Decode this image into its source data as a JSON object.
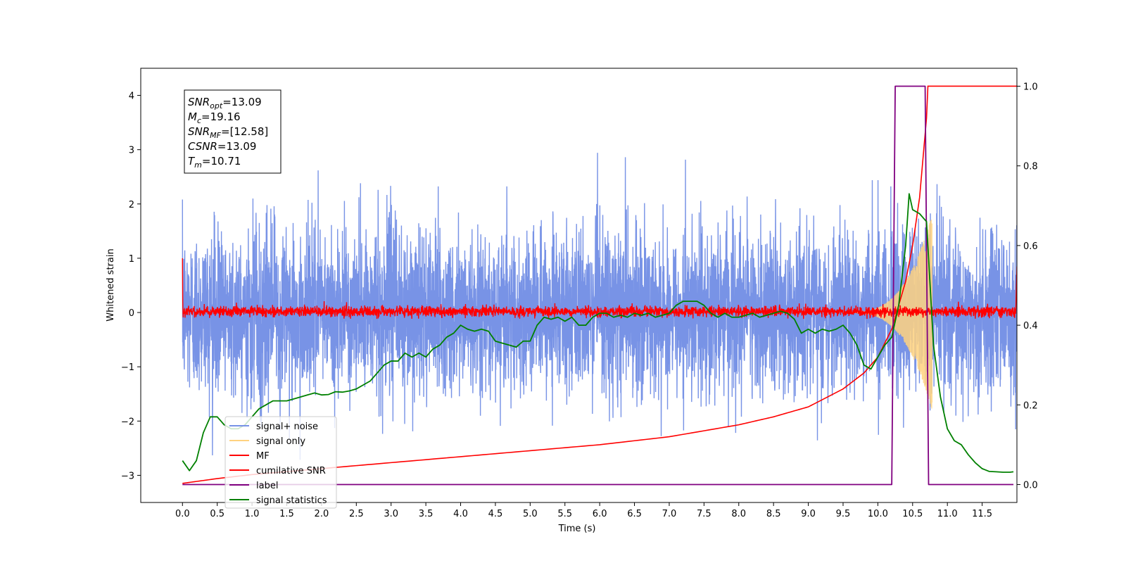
{
  "chart_data": {
    "type": "line",
    "xlabel": "Time (s)",
    "ylabel": "Whitened strain",
    "xlim": [
      -0.6,
      12.0
    ],
    "ylim": [
      -3.5,
      4.5
    ],
    "y2lim": [
      -0.045,
      1.045
    ],
    "grid": false,
    "legend_placement": "lower-left",
    "x_ticks": [
      0.0,
      0.5,
      1.0,
      1.5,
      2.0,
      2.5,
      3.0,
      3.5,
      4.0,
      4.5,
      5.0,
      5.5,
      6.0,
      6.5,
      7.0,
      7.5,
      8.0,
      8.5,
      9.0,
      9.5,
      10.0,
      10.5,
      11.0,
      11.5
    ],
    "x_tick_labels": [
      "0.0",
      "0.5",
      "1.0",
      "1.5",
      "2.0",
      "2.5",
      "3.0",
      "3.5",
      "4.0",
      "4.5",
      "5.0",
      "5.5",
      "6.0",
      "6.5",
      "7.0",
      "7.5",
      "8.0",
      "8.5",
      "9.0",
      "9.5",
      "10.0",
      "10.5",
      "11.0",
      "11.5"
    ],
    "y_ticks": [
      -3,
      -2,
      -1,
      0,
      1,
      2,
      3,
      4
    ],
    "y_tick_labels": [
      "−3",
      "−2",
      "−1",
      "0",
      "1",
      "2",
      "3",
      "4"
    ],
    "y2_ticks": [
      0.0,
      0.2,
      0.4,
      0.6,
      0.8,
      1.0
    ],
    "y2_tick_labels": [
      "0.0",
      "0.2",
      "0.4",
      "0.6",
      "0.8",
      "1.0"
    ],
    "annotation": [
      {
        "base": "SNR",
        "sub": "opt",
        "value": "=13.09"
      },
      {
        "base": "M",
        "sub": "c",
        "value": "=19.16"
      },
      {
        "base": "SNR",
        "sub": "MF",
        "value": "=[12.58]"
      },
      {
        "base": "CSNR",
        "sub": "",
        "value": "=13.09"
      },
      {
        "base": "T",
        "sub": "m",
        "value": "=10.71"
      }
    ],
    "series": [
      {
        "name": "signal+ noise",
        "color": "#7893e6",
        "axis": "left",
        "x_range": [
          0.0,
          12.0
        ],
        "noise_sigma": 0.75,
        "peak_range": [
          -2.9,
          3.3
        ]
      },
      {
        "name": "signal only",
        "color": "#ffd27f",
        "axis": "left",
        "x_range": [
          9.5,
          10.78
        ],
        "peak_amplitude": 1.8
      },
      {
        "name": "MF",
        "color": "#ff0000",
        "axis": "left",
        "x_range": [
          0.0,
          12.0
        ],
        "start_value": 1.0,
        "band": [
          -0.1,
          0.15
        ],
        "end_value": 0.85
      },
      {
        "name": "cumilative SNR",
        "color": "#ff0000",
        "axis": "right",
        "x": [
          0.0,
          0.5,
          1.0,
          2.0,
          3.0,
          4.0,
          5.0,
          6.0,
          7.0,
          8.0,
          8.5,
          9.0,
          9.5,
          9.8,
          10.0,
          10.2,
          10.4,
          10.5,
          10.6,
          10.7,
          10.72,
          12.0
        ],
        "y": [
          0.003,
          0.015,
          0.025,
          0.04,
          0.055,
          0.07,
          0.085,
          0.1,
          0.12,
          0.15,
          0.17,
          0.195,
          0.24,
          0.28,
          0.32,
          0.39,
          0.51,
          0.6,
          0.72,
          0.92,
          1.0,
          1.0
        ]
      },
      {
        "name": "label",
        "color": "#800080",
        "axis": "right",
        "x": [
          0.0,
          10.2,
          10.25,
          10.68,
          10.73,
          11.95
        ],
        "y": [
          0.0,
          0.0,
          1.0,
          1.0,
          0.0,
          0.0
        ]
      },
      {
        "name": "signal statistics",
        "color": "#008000",
        "axis": "right",
        "x": [
          0.0,
          0.1,
          0.2,
          0.3,
          0.4,
          0.5,
          0.6,
          0.7,
          0.8,
          0.9,
          1.0,
          1.1,
          1.2,
          1.3,
          1.4,
          1.5,
          1.6,
          1.7,
          1.8,
          1.9,
          2.0,
          2.1,
          2.2,
          2.3,
          2.4,
          2.5,
          2.6,
          2.7,
          2.8,
          2.9,
          3.0,
          3.1,
          3.2,
          3.3,
          3.4,
          3.5,
          3.6,
          3.7,
          3.8,
          3.9,
          4.0,
          4.1,
          4.2,
          4.3,
          4.4,
          4.5,
          4.6,
          4.7,
          4.8,
          4.9,
          5.0,
          5.1,
          5.2,
          5.3,
          5.4,
          5.5,
          5.6,
          5.7,
          5.8,
          5.9,
          6.0,
          6.1,
          6.2,
          6.3,
          6.4,
          6.5,
          6.6,
          6.7,
          6.8,
          6.9,
          7.0,
          7.1,
          7.2,
          7.3,
          7.4,
          7.5,
          7.6,
          7.7,
          7.8,
          7.9,
          8.0,
          8.1,
          8.2,
          8.3,
          8.4,
          8.5,
          8.6,
          8.7,
          8.8,
          8.9,
          9.0,
          9.1,
          9.2,
          9.3,
          9.4,
          9.5,
          9.6,
          9.7,
          9.8,
          9.9,
          10.0,
          10.1,
          10.2,
          10.3,
          10.4,
          10.45,
          10.5,
          10.6,
          10.7,
          10.8,
          10.9,
          11.0,
          11.1,
          11.2,
          11.3,
          11.4,
          11.5,
          11.6,
          11.7,
          11.8,
          11.9,
          11.95
        ],
        "y": [
          0.06,
          0.035,
          0.06,
          0.13,
          0.17,
          0.17,
          0.15,
          0.14,
          0.14,
          0.15,
          0.17,
          0.19,
          0.2,
          0.21,
          0.21,
          0.21,
          0.215,
          0.22,
          0.225,
          0.23,
          0.225,
          0.226,
          0.233,
          0.232,
          0.235,
          0.24,
          0.25,
          0.26,
          0.28,
          0.3,
          0.31,
          0.31,
          0.33,
          0.32,
          0.33,
          0.32,
          0.34,
          0.35,
          0.37,
          0.38,
          0.4,
          0.39,
          0.385,
          0.39,
          0.385,
          0.36,
          0.355,
          0.35,
          0.345,
          0.36,
          0.36,
          0.4,
          0.42,
          0.415,
          0.42,
          0.41,
          0.42,
          0.4,
          0.4,
          0.42,
          0.43,
          0.43,
          0.42,
          0.425,
          0.42,
          0.43,
          0.425,
          0.43,
          0.42,
          0.425,
          0.43,
          0.45,
          0.46,
          0.46,
          0.46,
          0.45,
          0.43,
          0.42,
          0.43,
          0.42,
          0.42,
          0.425,
          0.43,
          0.42,
          0.425,
          0.43,
          0.435,
          0.43,
          0.415,
          0.38,
          0.39,
          0.38,
          0.39,
          0.385,
          0.39,
          0.4,
          0.38,
          0.35,
          0.3,
          0.29,
          0.32,
          0.35,
          0.37,
          0.45,
          0.6,
          0.73,
          0.69,
          0.68,
          0.66,
          0.35,
          0.22,
          0.14,
          0.11,
          0.1,
          0.075,
          0.055,
          0.04,
          0.033,
          0.032,
          0.031,
          0.031,
          0.032
        ]
      }
    ]
  }
}
